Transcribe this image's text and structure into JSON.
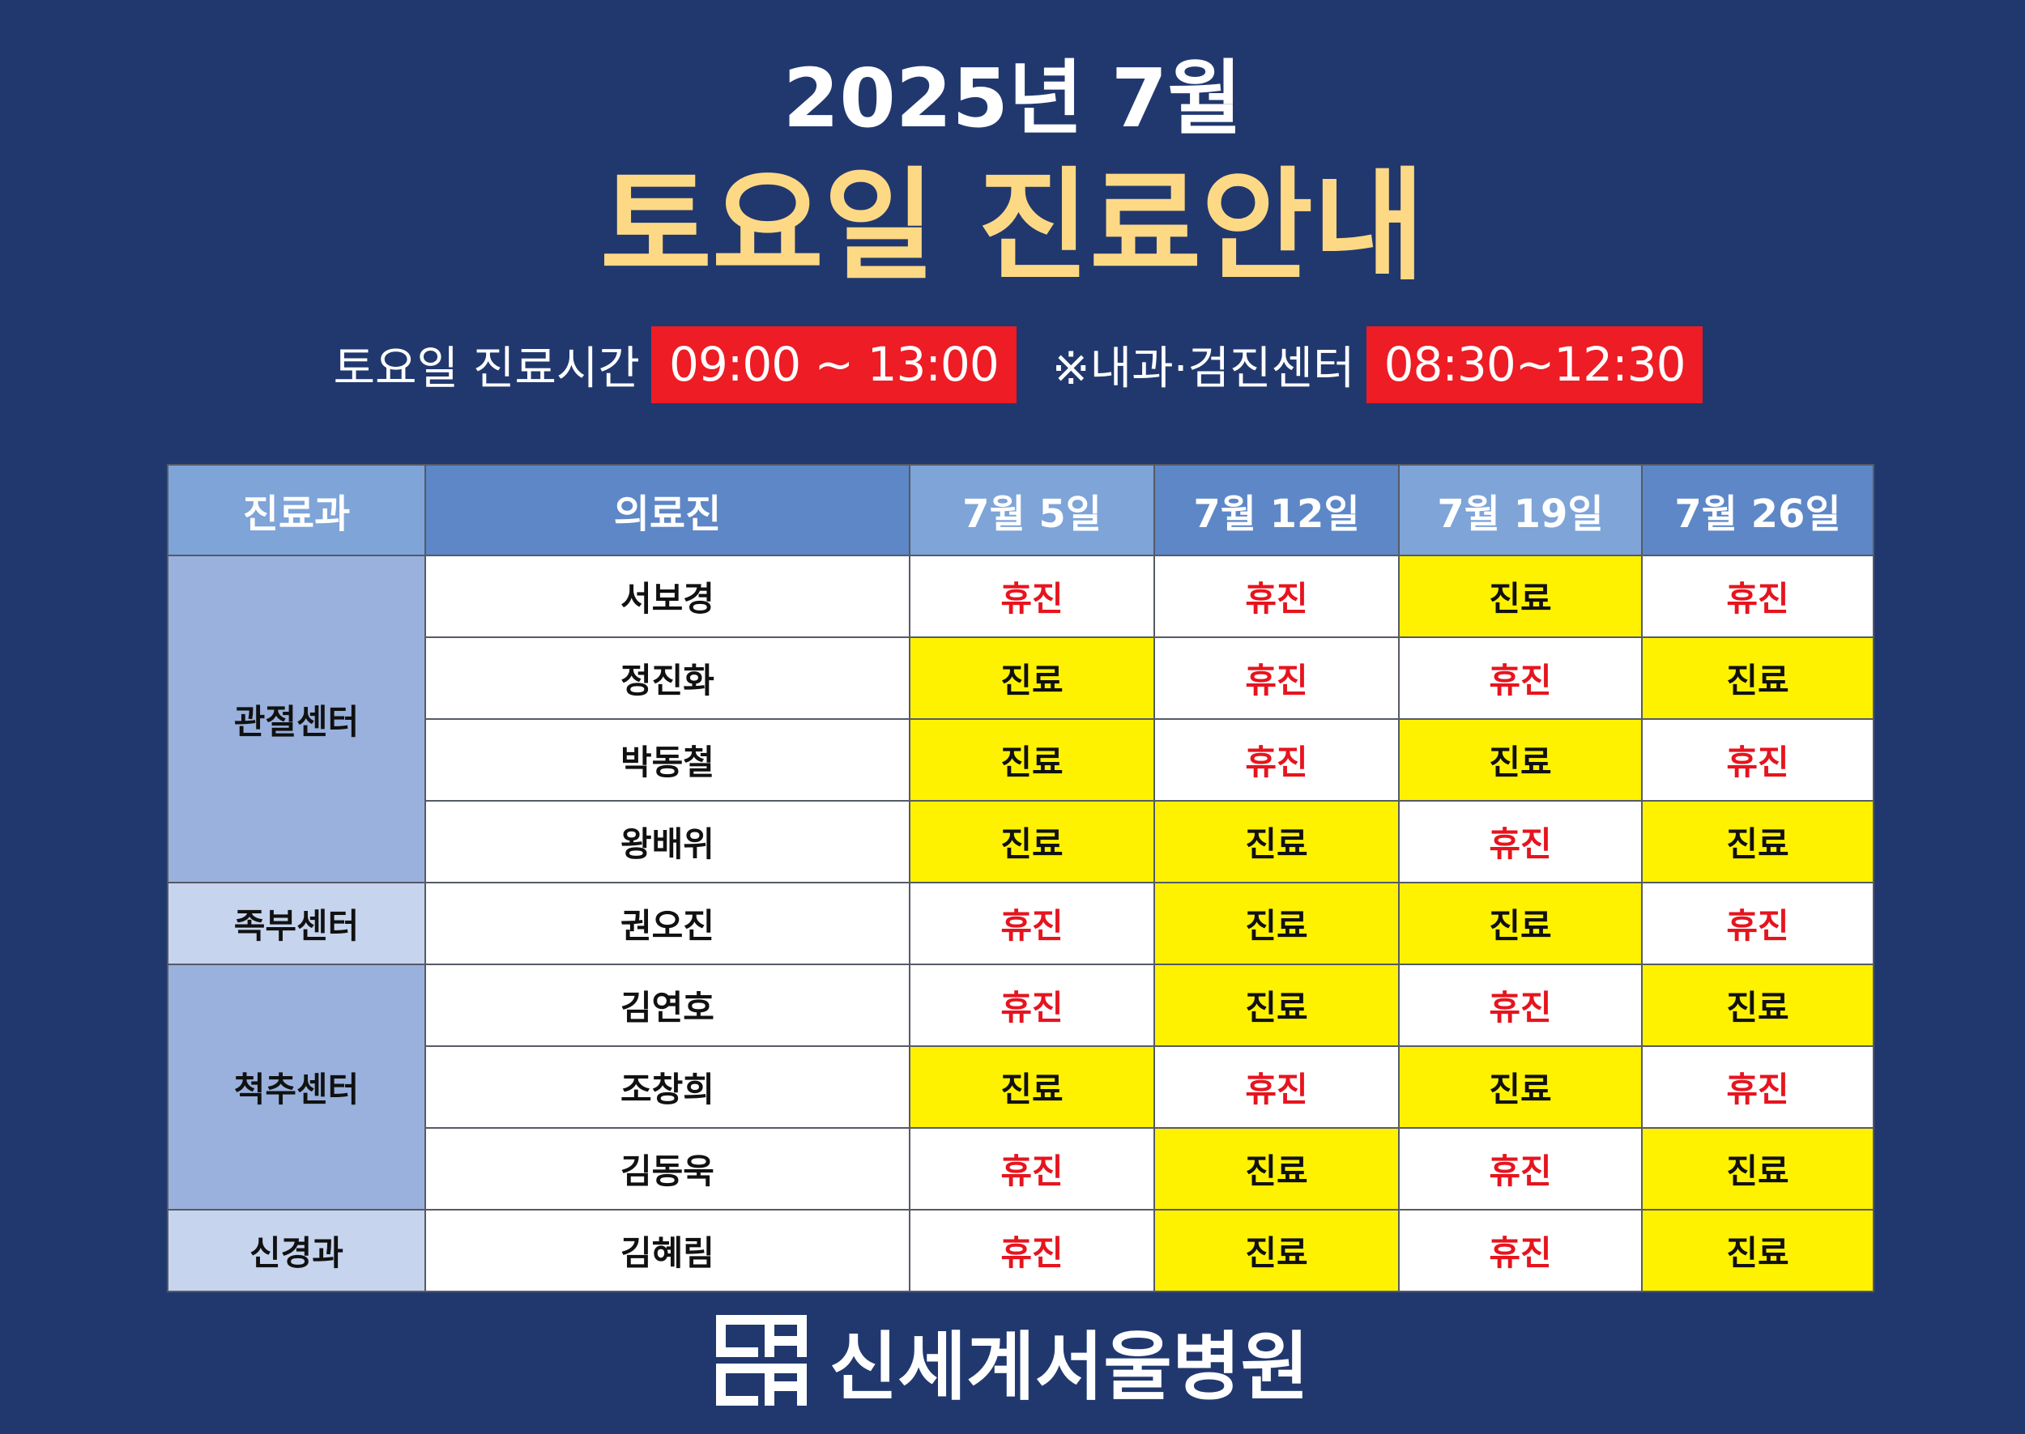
{
  "header": {
    "year_month": "2025년 7월",
    "title": "토요일 진료안내"
  },
  "hours": {
    "saturday_label": "토요일 진료시간",
    "saturday_time": "09:00 ~ 13:00",
    "internal_label": "※내과·검진센터",
    "internal_time": "08:30~12:30"
  },
  "table": {
    "columns": [
      "진료과",
      "의료진",
      "7월 5일",
      "7월 12일",
      "7월 19일",
      "7월 26일"
    ],
    "departments": [
      {
        "name": "관절센터",
        "doctors": [
          {
            "name": "서보경",
            "status": [
              "휴진",
              "휴진",
              "진료",
              "휴진"
            ]
          },
          {
            "name": "정진화",
            "status": [
              "진료",
              "휴진",
              "휴진",
              "진료"
            ]
          },
          {
            "name": "박동철",
            "status": [
              "진료",
              "휴진",
              "진료",
              "휴진"
            ]
          },
          {
            "name": "왕배위",
            "status": [
              "진료",
              "진료",
              "휴진",
              "진료"
            ]
          }
        ]
      },
      {
        "name": "족부센터",
        "doctors": [
          {
            "name": "권오진",
            "status": [
              "휴진",
              "진료",
              "진료",
              "휴진"
            ]
          }
        ]
      },
      {
        "name": "척추센터",
        "doctors": [
          {
            "name": "김연호",
            "status": [
              "휴진",
              "진료",
              "휴진",
              "진료"
            ]
          },
          {
            "name": "조창희",
            "status": [
              "진료",
              "휴진",
              "진료",
              "휴진"
            ]
          },
          {
            "name": "김동욱",
            "status": [
              "휴진",
              "진료",
              "휴진",
              "진료"
            ]
          }
        ]
      },
      {
        "name": "신경과",
        "doctors": [
          {
            "name": "김혜림",
            "status": [
              "휴진",
              "진료",
              "휴진",
              "진료"
            ]
          }
        ]
      }
    ]
  },
  "colors": {
    "background": "#21386f",
    "title_yellow": "#fed985",
    "time_box_red": "#ee1c24",
    "open_yellow": "#fff200",
    "closed_text_red": "#e6141e"
  },
  "footer": {
    "logo_icon": "hospital-logo-icon",
    "hospital_name": "신세계서울병원"
  }
}
